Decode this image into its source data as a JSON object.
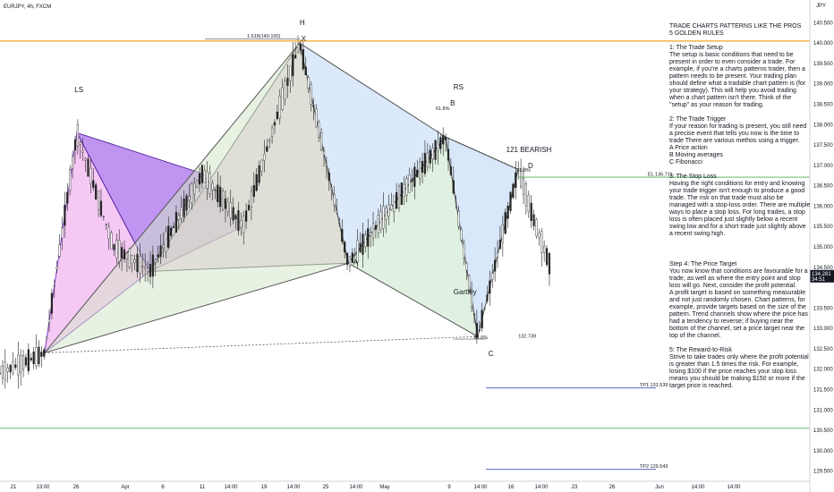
{
  "symbol": "EURJPY, 4h, FXCM",
  "currency_badge": "JPY",
  "price_tag": "134.281",
  "price_tag_sub": "34:51",
  "chart_data": {
    "type": "candlestick",
    "ylim": [
      129.25,
      140.75
    ],
    "y_ticks": [
      {
        "v": 140.5,
        "label": "140.500"
      },
      {
        "v": 140.0,
        "label": "140.000"
      },
      {
        "v": 139.5,
        "label": "139.500"
      },
      {
        "v": 139.0,
        "label": "139.000"
      },
      {
        "v": 138.5,
        "label": "138.500"
      },
      {
        "v": 138.0,
        "label": "138.000"
      },
      {
        "v": 137.5,
        "label": "137.500"
      },
      {
        "v": 137.0,
        "label": "137.000"
      },
      {
        "v": 136.5,
        "label": "136.500"
      },
      {
        "v": 136.0,
        "label": "136.000"
      },
      {
        "v": 135.5,
        "label": "135.500"
      },
      {
        "v": 135.0,
        "label": "135.000"
      },
      {
        "v": 134.5,
        "label": "134.500"
      },
      {
        "v": 133.5,
        "label": "133.500"
      },
      {
        "v": 133.0,
        "label": "133.000"
      },
      {
        "v": 132.5,
        "label": "132.500"
      },
      {
        "v": 132.0,
        "label": "132.000"
      },
      {
        "v": 131.5,
        "label": "131.500"
      },
      {
        "v": 131.0,
        "label": "131.000"
      },
      {
        "v": 130.5,
        "label": "130.500"
      },
      {
        "v": 130.0,
        "label": "130.000"
      },
      {
        "v": 129.5,
        "label": "129.500"
      }
    ],
    "x_ticks": [
      "21",
      "13:00",
      "26",
      "Apr",
      "6",
      "11",
      "14:00",
      "19",
      "14:00",
      "25",
      "14:00",
      "May",
      "9",
      "14:00",
      "16",
      "14:00",
      "23",
      "26",
      "Jun",
      "14:00",
      "14:00"
    ],
    "points": [
      {
        "name": "LS",
        "label": "LS",
        "t": 0.11,
        "v": 138.0
      },
      {
        "name": "H",
        "label": "H",
        "t": 0.45,
        "v": 140.4
      },
      {
        "name": "X",
        "label": "X",
        "t": 0.46,
        "v": 139.9
      },
      {
        "name": "RS",
        "label": "RS",
        "t": 0.69,
        "v": 138.0
      },
      {
        "name": "B",
        "label": "B",
        "t": 0.69,
        "v": 137.65
      },
      {
        "name": "D",
        "label": "D",
        "t": 0.8,
        "v": 136.9
      },
      {
        "name": "A",
        "label": "A",
        "t": 0.54,
        "v": 134.6
      },
      {
        "name": "C",
        "label": "C",
        "t": 0.745,
        "v": 132.4
      },
      {
        "name": "Gartley",
        "label": "Gartley",
        "t": 0.7,
        "v": 133.85
      },
      {
        "name": "bearish",
        "label": "121 BEARISH",
        "t": 0.78,
        "v": 137.48
      }
    ],
    "levels": [
      {
        "name": "fib-top",
        "label": "1.618(140.100)",
        "v": 140.1,
        "color": "#8c8c8c"
      },
      {
        "name": "orange",
        "label": "",
        "v": 140.05,
        "color": "#f5a623"
      },
      {
        "name": "el",
        "label": "EL 136.711",
        "v": 136.711,
        "color": "#4caf50"
      },
      {
        "name": "low",
        "label": "132.739",
        "v": 132.739,
        "color": "#888888"
      },
      {
        "name": "tp1",
        "label": "TP1 131.539",
        "v": 131.539,
        "color": "#3f51b5"
      },
      {
        "name": "green-low",
        "label": "",
        "v": 130.55,
        "color": "#4caf50"
      },
      {
        "name": "tp2",
        "label": "TP2 129.543",
        "v": 129.543,
        "color": "#3f51b5"
      }
    ],
    "ratio_labels": [
      {
        "label": "61.8%",
        "t": 0.665,
        "v": 137.7
      },
      {
        "label": "61.8%",
        "t": 0.787,
        "v": 136.9
      },
      {
        "label": "88.6%",
        "t": 0.578,
        "v": 132.8
      }
    ]
  },
  "notes": [
    {
      "title": "TRADE CHARTS PATTERNS LIKE THE PROS\n 5 GOLDEN RULES",
      "body": ""
    },
    {
      "title": "1: The Trade Setup",
      "body": "The setup is basic conditions that need to be present in order to even consider a trade. For example, if you're a charts patterns trader, then a pattern needs to be present. Your trading plan should define what a tradable chart pattern is (for your strategy). This will help you avoid trading when a chart pattern isn't there. Think of the \"setup\" as your reason for trading."
    },
    {
      "title": "2: The Trade Trigger",
      "body": "If your reason for trading is present, you still need a precise event that tells you now is the time to trade There are various methos using a trigger.\nA Price action\nB Moving averages\nC Fibonacci"
    },
    {
      "title": "3: The Stop Loss",
      "body": "Having the right conditions for entry and knowing your trade trigger isn't enough to produce a good trade. The risk on that trade must also be managed with a stop-loss order. There are multiple ways to place a stop loss. For long trades, a stop loss is often placed just slightly below a recent swing low and for a short trade just slightly above a recent swing high."
    },
    {
      "title": "Step 4: The Price Target",
      "body": "You now know that conditions are favourable for a trade, as well as where the entry point and stop loss will go. Next, consider the profit potential.\nA profit target is based on something measurable and not just randomly chosen. Chart patterns, for example, provide targets based on the size of the pattern. Trend channels show where the price has had a tendency to reverse; if buying near the bottom of the channel, set a price target near the top of the channel."
    },
    {
      "title": " 5: The Reward-to-Risk",
      "body": "Strive to take trades only where the profit potential is greater than 1.5 times the risk. For example, losing $100 if the price reaches your stop loss means you should be making $150 or more if the target price is reached."
    }
  ]
}
